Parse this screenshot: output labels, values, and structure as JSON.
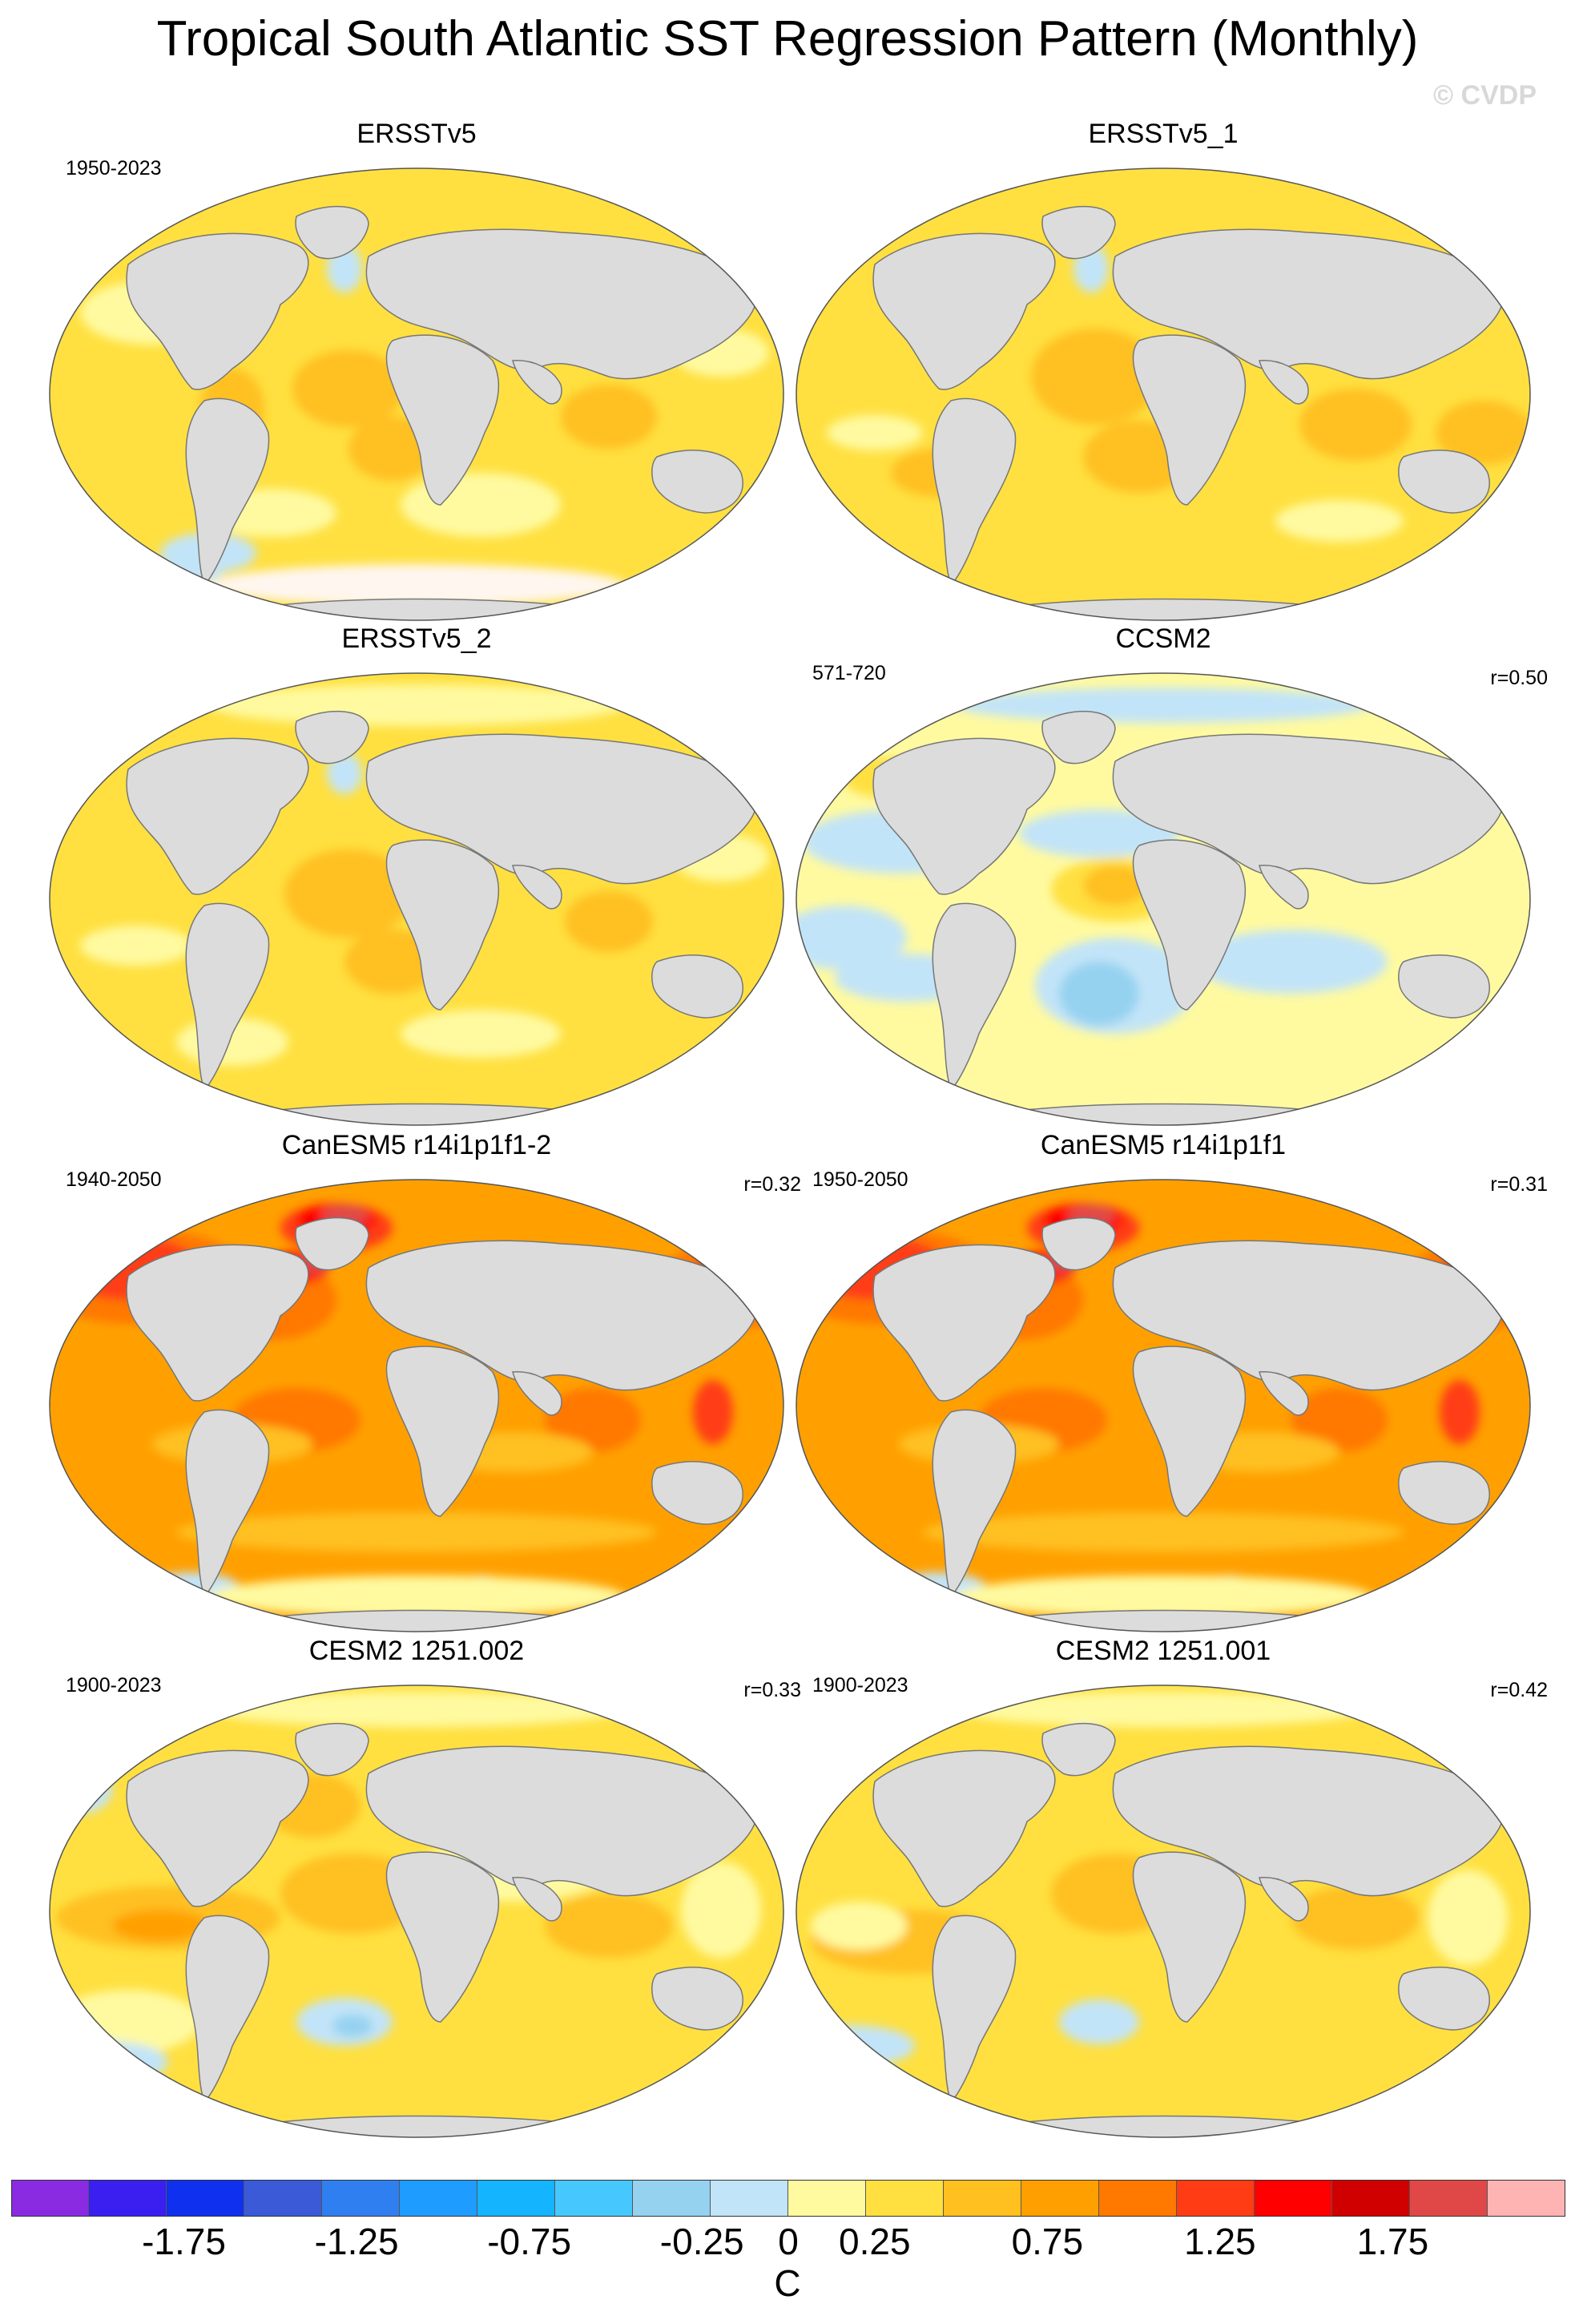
{
  "title": "Tropical South Atlantic SST Regression Pattern (Monthly)",
  "watermark": "© CVDP",
  "panels": [
    {
      "title": "ERSSTv5",
      "left_label": "1950-2023",
      "right_label": "",
      "style": "obs"
    },
    {
      "title": "ERSSTv5_1",
      "left_label": "",
      "right_label": "",
      "style": "obs1"
    },
    {
      "title": "ERSSTv5_2",
      "left_label": "",
      "right_label": "",
      "style": "obs2"
    },
    {
      "title": "CCSM2",
      "left_label": "571-720",
      "right_label": "r=0.50",
      "style": "ccsm"
    },
    {
      "title": "CanESM5 r14i1p1f1-2",
      "left_label": "1940-2050",
      "right_label": "r=0.32",
      "style": "can"
    },
    {
      "title": "CanESM5 r14i1p1f1",
      "left_label": "1950-2050",
      "right_label": "r=0.31",
      "style": "can"
    },
    {
      "title": "CESM2 1251.002",
      "left_label": "1900-2023",
      "right_label": "r=0.33",
      "style": "cesm"
    },
    {
      "title": "CESM2 1251.001",
      "left_label": "1900-2023",
      "right_label": "r=0.42",
      "style": "cesm1"
    }
  ],
  "colorbar": {
    "unit": "C",
    "colors": [
      "#8a2be2",
      "#3a1ff0",
      "#1030f0",
      "#3a5ad8",
      "#2f7ff0",
      "#1e9cff",
      "#14b4ff",
      "#46c8ff",
      "#95d2f0",
      "#c2e4f8",
      "#fffaa0",
      "#ffe040",
      "#ffc020",
      "#ffa000",
      "#ff7800",
      "#ff3c14",
      "#ff0000",
      "#d00000",
      "#e04848",
      "#ffb4b4"
    ],
    "tick_labels": [
      "-1.75",
      "-1.25",
      "-0.75",
      "-0.25",
      "0",
      "0.25",
      "0.75",
      "1.25",
      "1.75"
    ],
    "tick_values": [
      -1.75,
      -1.25,
      -0.75,
      -0.25,
      0,
      0.25,
      0.75,
      1.25,
      1.75
    ],
    "range": [
      -2.25,
      2.25
    ]
  }
}
